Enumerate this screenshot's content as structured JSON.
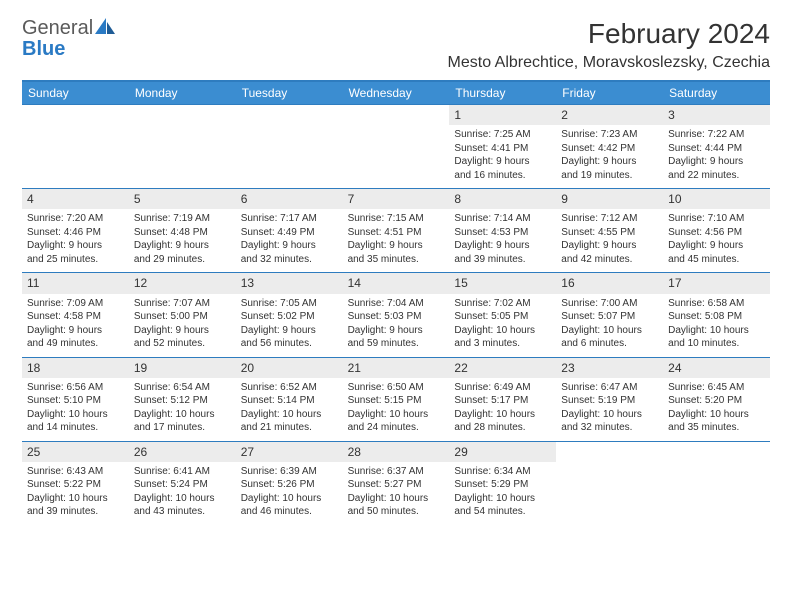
{
  "brand": {
    "part1": "General",
    "part2": "Blue"
  },
  "header": {
    "title": "February 2024",
    "location": "Mesto Albrechtice, Moravskoslezsky, Czechia"
  },
  "colors": {
    "header_bar": "#3b8dd1",
    "header_border": "#2e7cbf",
    "daynum_bg": "#ececec",
    "text": "#333333",
    "logo_gray": "#5a5a5a",
    "logo_blue": "#2a7ac4"
  },
  "weekdays": [
    "Sunday",
    "Monday",
    "Tuesday",
    "Wednesday",
    "Thursday",
    "Friday",
    "Saturday"
  ],
  "weeks": [
    [
      null,
      null,
      null,
      null,
      {
        "n": "1",
        "sunrise": "Sunrise: 7:25 AM",
        "sunset": "Sunset: 4:41 PM",
        "day1": "Daylight: 9 hours",
        "day2": "and 16 minutes."
      },
      {
        "n": "2",
        "sunrise": "Sunrise: 7:23 AM",
        "sunset": "Sunset: 4:42 PM",
        "day1": "Daylight: 9 hours",
        "day2": "and 19 minutes."
      },
      {
        "n": "3",
        "sunrise": "Sunrise: 7:22 AM",
        "sunset": "Sunset: 4:44 PM",
        "day1": "Daylight: 9 hours",
        "day2": "and 22 minutes."
      }
    ],
    [
      {
        "n": "4",
        "sunrise": "Sunrise: 7:20 AM",
        "sunset": "Sunset: 4:46 PM",
        "day1": "Daylight: 9 hours",
        "day2": "and 25 minutes."
      },
      {
        "n": "5",
        "sunrise": "Sunrise: 7:19 AM",
        "sunset": "Sunset: 4:48 PM",
        "day1": "Daylight: 9 hours",
        "day2": "and 29 minutes."
      },
      {
        "n": "6",
        "sunrise": "Sunrise: 7:17 AM",
        "sunset": "Sunset: 4:49 PM",
        "day1": "Daylight: 9 hours",
        "day2": "and 32 minutes."
      },
      {
        "n": "7",
        "sunrise": "Sunrise: 7:15 AM",
        "sunset": "Sunset: 4:51 PM",
        "day1": "Daylight: 9 hours",
        "day2": "and 35 minutes."
      },
      {
        "n": "8",
        "sunrise": "Sunrise: 7:14 AM",
        "sunset": "Sunset: 4:53 PM",
        "day1": "Daylight: 9 hours",
        "day2": "and 39 minutes."
      },
      {
        "n": "9",
        "sunrise": "Sunrise: 7:12 AM",
        "sunset": "Sunset: 4:55 PM",
        "day1": "Daylight: 9 hours",
        "day2": "and 42 minutes."
      },
      {
        "n": "10",
        "sunrise": "Sunrise: 7:10 AM",
        "sunset": "Sunset: 4:56 PM",
        "day1": "Daylight: 9 hours",
        "day2": "and 45 minutes."
      }
    ],
    [
      {
        "n": "11",
        "sunrise": "Sunrise: 7:09 AM",
        "sunset": "Sunset: 4:58 PM",
        "day1": "Daylight: 9 hours",
        "day2": "and 49 minutes."
      },
      {
        "n": "12",
        "sunrise": "Sunrise: 7:07 AM",
        "sunset": "Sunset: 5:00 PM",
        "day1": "Daylight: 9 hours",
        "day2": "and 52 minutes."
      },
      {
        "n": "13",
        "sunrise": "Sunrise: 7:05 AM",
        "sunset": "Sunset: 5:02 PM",
        "day1": "Daylight: 9 hours",
        "day2": "and 56 minutes."
      },
      {
        "n": "14",
        "sunrise": "Sunrise: 7:04 AM",
        "sunset": "Sunset: 5:03 PM",
        "day1": "Daylight: 9 hours",
        "day2": "and 59 minutes."
      },
      {
        "n": "15",
        "sunrise": "Sunrise: 7:02 AM",
        "sunset": "Sunset: 5:05 PM",
        "day1": "Daylight: 10 hours",
        "day2": "and 3 minutes."
      },
      {
        "n": "16",
        "sunrise": "Sunrise: 7:00 AM",
        "sunset": "Sunset: 5:07 PM",
        "day1": "Daylight: 10 hours",
        "day2": "and 6 minutes."
      },
      {
        "n": "17",
        "sunrise": "Sunrise: 6:58 AM",
        "sunset": "Sunset: 5:08 PM",
        "day1": "Daylight: 10 hours",
        "day2": "and 10 minutes."
      }
    ],
    [
      {
        "n": "18",
        "sunrise": "Sunrise: 6:56 AM",
        "sunset": "Sunset: 5:10 PM",
        "day1": "Daylight: 10 hours",
        "day2": "and 14 minutes."
      },
      {
        "n": "19",
        "sunrise": "Sunrise: 6:54 AM",
        "sunset": "Sunset: 5:12 PM",
        "day1": "Daylight: 10 hours",
        "day2": "and 17 minutes."
      },
      {
        "n": "20",
        "sunrise": "Sunrise: 6:52 AM",
        "sunset": "Sunset: 5:14 PM",
        "day1": "Daylight: 10 hours",
        "day2": "and 21 minutes."
      },
      {
        "n": "21",
        "sunrise": "Sunrise: 6:50 AM",
        "sunset": "Sunset: 5:15 PM",
        "day1": "Daylight: 10 hours",
        "day2": "and 24 minutes."
      },
      {
        "n": "22",
        "sunrise": "Sunrise: 6:49 AM",
        "sunset": "Sunset: 5:17 PM",
        "day1": "Daylight: 10 hours",
        "day2": "and 28 minutes."
      },
      {
        "n": "23",
        "sunrise": "Sunrise: 6:47 AM",
        "sunset": "Sunset: 5:19 PM",
        "day1": "Daylight: 10 hours",
        "day2": "and 32 minutes."
      },
      {
        "n": "24",
        "sunrise": "Sunrise: 6:45 AM",
        "sunset": "Sunset: 5:20 PM",
        "day1": "Daylight: 10 hours",
        "day2": "and 35 minutes."
      }
    ],
    [
      {
        "n": "25",
        "sunrise": "Sunrise: 6:43 AM",
        "sunset": "Sunset: 5:22 PM",
        "day1": "Daylight: 10 hours",
        "day2": "and 39 minutes."
      },
      {
        "n": "26",
        "sunrise": "Sunrise: 6:41 AM",
        "sunset": "Sunset: 5:24 PM",
        "day1": "Daylight: 10 hours",
        "day2": "and 43 minutes."
      },
      {
        "n": "27",
        "sunrise": "Sunrise: 6:39 AM",
        "sunset": "Sunset: 5:26 PM",
        "day1": "Daylight: 10 hours",
        "day2": "and 46 minutes."
      },
      {
        "n": "28",
        "sunrise": "Sunrise: 6:37 AM",
        "sunset": "Sunset: 5:27 PM",
        "day1": "Daylight: 10 hours",
        "day2": "and 50 minutes."
      },
      {
        "n": "29",
        "sunrise": "Sunrise: 6:34 AM",
        "sunset": "Sunset: 5:29 PM",
        "day1": "Daylight: 10 hours",
        "day2": "and 54 minutes."
      },
      null,
      null
    ]
  ]
}
